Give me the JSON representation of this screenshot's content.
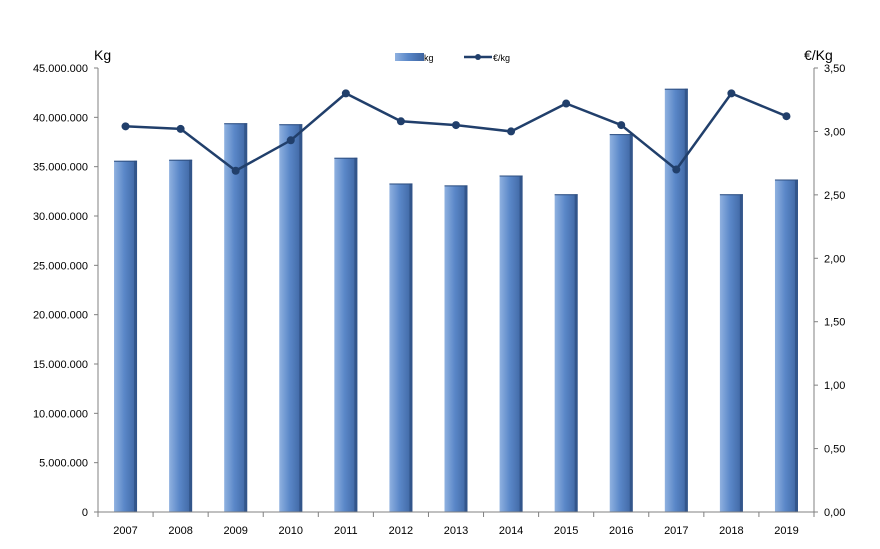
{
  "chart_data": {
    "type": "bar",
    "categories": [
      "2007",
      "2008",
      "2009",
      "2010",
      "2011",
      "2012",
      "2013",
      "2014",
      "2015",
      "2016",
      "2017",
      "2018",
      "2019"
    ],
    "series": [
      {
        "name": "kg",
        "type": "bar",
        "axis": "left",
        "color": "#5a87c8",
        "values": [
          35600000,
          35700000,
          39400000,
          39300000,
          35900000,
          33300000,
          33100000,
          34100000,
          32200000,
          38300000,
          42900000,
          32200000,
          33700000
        ]
      },
      {
        "name": "€/kg",
        "type": "line",
        "axis": "right",
        "color": "#213f6b",
        "values": [
          3.04,
          3.02,
          2.69,
          2.93,
          3.3,
          3.08,
          3.05,
          3.0,
          3.22,
          3.05,
          2.7,
          3.3,
          3.12
        ]
      }
    ],
    "left_axis": {
      "label": "Kg",
      "ylim": [
        0,
        45000000
      ],
      "ticks": [
        "0",
        "5.000.000",
        "10.000.000",
        "15.000.000",
        "20.000.000",
        "25.000.000",
        "30.000.000",
        "35.000.000",
        "40.000.000",
        "45.000.000"
      ]
    },
    "right_axis": {
      "label": "€/Kg",
      "ylim": [
        0,
        3.5
      ],
      "ticks": [
        "0,00",
        "0,50",
        "1,00",
        "1,50",
        "2,00",
        "2,50",
        "3,00",
        "3,50"
      ]
    },
    "legend": {
      "position": "top-center",
      "entries": [
        "kg",
        "€/kg"
      ]
    },
    "grid": false
  }
}
